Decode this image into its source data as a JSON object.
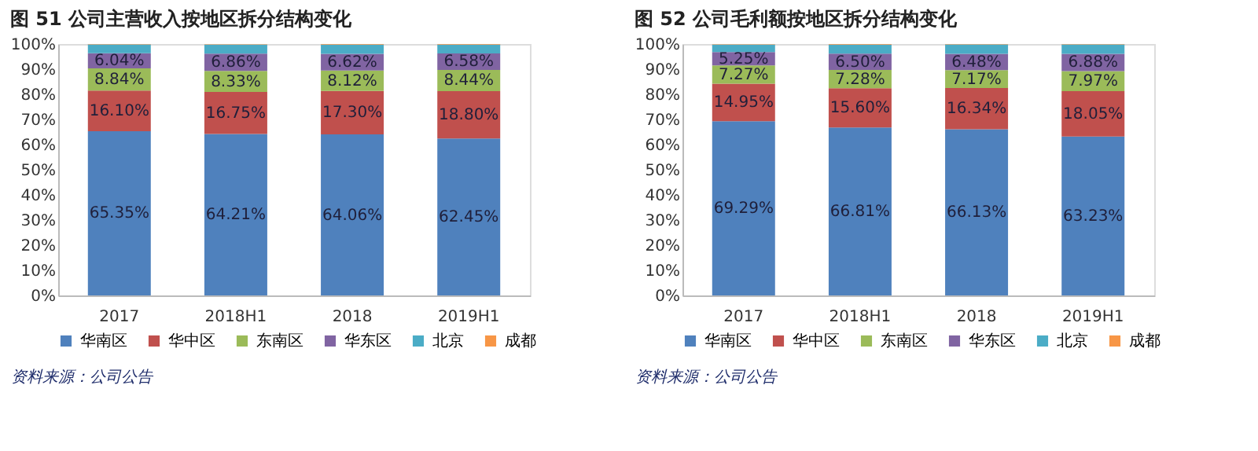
{
  "chart_data": [
    {
      "type": "bar",
      "title": "图 51  公司主营收入按地区拆分结构变化",
      "stacked": true,
      "categories": [
        "2017",
        "2018H1",
        "2018",
        "2019H1"
      ],
      "ylim": [
        0,
        100
      ],
      "yticks": [
        {
          "value": 0,
          "label": "0%"
        },
        {
          "value": 10,
          "label": "10%"
        },
        {
          "value": 20,
          "label": "20%"
        },
        {
          "value": 30,
          "label": "30%"
        },
        {
          "value": 40,
          "label": "40%"
        },
        {
          "value": 50,
          "label": "50%"
        },
        {
          "value": 60,
          "label": "60%"
        },
        {
          "value": 70,
          "label": "70%"
        },
        {
          "value": 80,
          "label": "80%"
        },
        {
          "value": 90,
          "label": "90%"
        },
        {
          "value": 100,
          "label": "100%"
        }
      ],
      "grid": false,
      "legend": "bottom",
      "series": [
        {
          "name": "华南区",
          "color": "#4f81bd",
          "values": [
            65.35,
            64.21,
            64.06,
            62.45
          ],
          "value_labels": [
            "65.35%",
            "64.21%",
            "64.06%",
            "62.45%"
          ]
        },
        {
          "name": "华中区",
          "color": "#c0504d",
          "values": [
            16.1,
            16.75,
            17.3,
            18.8
          ],
          "value_labels": [
            "16.10%",
            "16.75%",
            "17.30%",
            "18.80%"
          ]
        },
        {
          "name": "东南区",
          "color": "#9bbb59",
          "values": [
            8.84,
            8.33,
            8.12,
            8.44
          ],
          "value_labels": [
            "8.84%",
            "8.33%",
            "8.12%",
            "8.44%"
          ]
        },
        {
          "name": "华东区",
          "color": "#8064a2",
          "values": [
            6.04,
            6.86,
            6.62,
            6.58
          ],
          "value_labels": [
            "6.04%",
            "6.86%",
            "6.62%",
            "6.58%"
          ]
        },
        {
          "name": "北京",
          "color": "#4bacc6",
          "values": [
            3.5,
            3.6,
            3.7,
            3.5
          ]
        },
        {
          "name": "成都",
          "color": "#f79646",
          "values": [
            0.2,
            0.2,
            0.2,
            0.2
          ]
        }
      ],
      "annotations": [
        "资料来源：公司公告"
      ]
    },
    {
      "type": "bar",
      "title": "图 52  公司毛利额按地区拆分结构变化",
      "stacked": true,
      "categories": [
        "2017",
        "2018H1",
        "2018",
        "2019H1"
      ],
      "ylim": [
        0,
        100
      ],
      "yticks": [
        {
          "value": 0,
          "label": "0%"
        },
        {
          "value": 10,
          "label": "10%"
        },
        {
          "value": 20,
          "label": "20%"
        },
        {
          "value": 30,
          "label": "30%"
        },
        {
          "value": 40,
          "label": "40%"
        },
        {
          "value": 50,
          "label": "50%"
        },
        {
          "value": 60,
          "label": "60%"
        },
        {
          "value": 70,
          "label": "70%"
        },
        {
          "value": 80,
          "label": "80%"
        },
        {
          "value": 90,
          "label": "90%"
        },
        {
          "value": 100,
          "label": "100%"
        }
      ],
      "grid": false,
      "legend": "bottom",
      "series": [
        {
          "name": "华南区",
          "color": "#4f81bd",
          "values": [
            69.29,
            66.81,
            66.13,
            63.23
          ],
          "value_labels": [
            "69.29%",
            "66.81%",
            "66.13%",
            "63.23%"
          ]
        },
        {
          "name": "华中区",
          "color": "#c0504d",
          "values": [
            14.95,
            15.6,
            16.34,
            18.05
          ],
          "value_labels": [
            "14.95%",
            "15.60%",
            "16.34%",
            "18.05%"
          ]
        },
        {
          "name": "东南区",
          "color": "#9bbb59",
          "values": [
            7.27,
            7.28,
            7.17,
            7.97
          ],
          "value_labels": [
            "7.27%",
            "7.28%",
            "7.17%",
            "7.97%"
          ]
        },
        {
          "name": "华东区",
          "color": "#8064a2",
          "values": [
            5.25,
            6.5,
            6.48,
            6.88
          ],
          "value_labels": [
            "5.25%",
            "6.50%",
            "6.48%",
            "6.88%"
          ]
        },
        {
          "name": "北京",
          "color": "#4bacc6",
          "values": [
            3.0,
            3.6,
            3.7,
            3.7
          ]
        },
        {
          "name": "成都",
          "color": "#f79646",
          "values": [
            0.2,
            0.2,
            0.2,
            0.2
          ]
        }
      ],
      "annotations": [
        "资料来源：公司公告"
      ]
    }
  ]
}
